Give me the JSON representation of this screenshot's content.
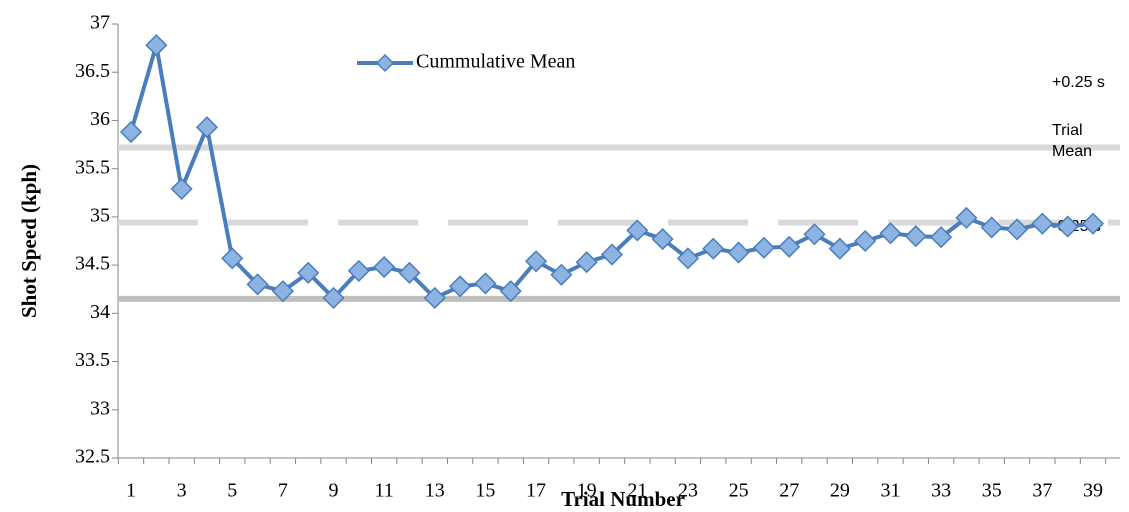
{
  "chart_data": {
    "type": "line",
    "x_label": "Trial Number",
    "y_label": "Shot Speed (kph)",
    "categories": [
      "1",
      null,
      "3",
      null,
      "5",
      null,
      "7",
      null,
      "9",
      null,
      "11",
      null,
      "13",
      null,
      "15",
      null,
      "17",
      null,
      "19",
      null,
      "21",
      null,
      "23",
      null,
      "25",
      null,
      "27",
      null,
      "29",
      null,
      "31",
      null,
      "33",
      null,
      "35",
      null,
      "37",
      null,
      "39"
    ],
    "series": [
      {
        "name": "Cummulative Mean",
        "color": "#4a7ebb",
        "marker_fill": "#8db3e2",
        "values": [
          35.88,
          36.78,
          35.29,
          35.93,
          34.57,
          34.3,
          34.23,
          34.42,
          34.16,
          34.44,
          34.48,
          34.42,
          34.16,
          34.28,
          34.31,
          34.23,
          34.54,
          34.4,
          34.53,
          34.61,
          34.86,
          34.77,
          34.57,
          34.67,
          34.63,
          34.68,
          34.69,
          34.82,
          34.67,
          34.75,
          34.83,
          34.8,
          34.79,
          34.99,
          34.89,
          34.87,
          34.93,
          34.9,
          34.93
        ]
      }
    ],
    "reference_lines": [
      {
        "value": 35.72,
        "color": "#d9d9d9",
        "style": "solid"
      },
      {
        "value": 34.94,
        "color": "#d9d9d9",
        "style": "dashed"
      },
      {
        "value": 34.15,
        "color": "#bfbfbf",
        "style": "solid"
      }
    ],
    "annotations": [
      "+0.25 s",
      "Trial Mean",
      "-0.25 s"
    ],
    "ylim": [
      32.5,
      37
    ],
    "yticks": [
      32.5,
      33,
      33.5,
      34,
      34.5,
      35,
      35.5,
      36,
      36.5,
      37
    ],
    "legend_position": "top-left"
  }
}
